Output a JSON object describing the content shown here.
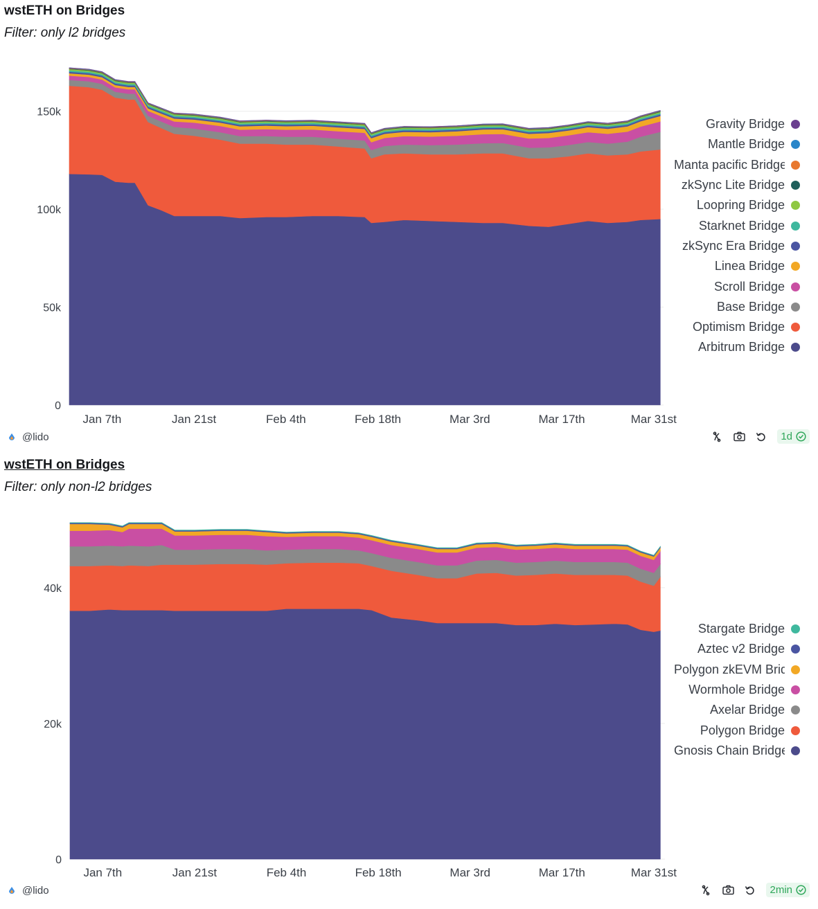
{
  "panels": [
    {
      "title": "wstETH on Bridges",
      "subtitle": "Filter: only l2 bridges",
      "author": "@lido",
      "freshness": "1d",
      "legend": [
        "Gravity Bridge",
        "Mantle Bridge",
        "Manta pacific Bridge",
        "zkSync Lite Bridge",
        "Loopring Bridge",
        "Starknet Bridge",
        "zkSync Era Bridge",
        "Linea Bridge",
        "Scroll Bridge",
        "Base Bridge",
        "Optimism Bridge",
        "Arbitrum Bridge"
      ]
    },
    {
      "title": "wstETH on Bridges",
      "subtitle": "Filter: only non-l2 bridges",
      "author": "@lido",
      "freshness": "2min",
      "legend": [
        "Stargate Bridge",
        "Aztec v2 Bridge",
        "Polygon zkEVM Bridge",
        "Wormhole Bridge",
        "Axelar Bridge",
        "Polygon Bridge",
        "Gnosis Chain Bridge"
      ]
    }
  ],
  "chart_data": [
    {
      "type": "area",
      "stacked": true,
      "title": "wstETH on Bridges",
      "subtitle": "Filter: only l2 bridges",
      "xlabel": "",
      "ylabel": "",
      "x_ticks": [
        "Jan 7th",
        "Jan 21st",
        "Feb 4th",
        "Feb 18th",
        "Mar 3rd",
        "Mar 17th",
        "Mar 31st"
      ],
      "y_ticks": [
        "0",
        "50k",
        "100k",
        "150k"
      ],
      "ylim": [
        0,
        175000
      ],
      "x": [
        "Jan 2",
        "Jan 5",
        "Jan 7",
        "Jan 9",
        "Jan 11",
        "Jan 12",
        "Jan 14",
        "Jan 16",
        "Jan 18",
        "Jan 21",
        "Jan 25",
        "Jan 28",
        "Feb 1",
        "Feb 4",
        "Feb 8",
        "Feb 12",
        "Feb 16",
        "Feb 17",
        "Feb 19",
        "Feb 22",
        "Feb 26",
        "Mar 1",
        "Mar 5",
        "Mar 8",
        "Mar 12",
        "Mar 15",
        "Mar 18",
        "Mar 21",
        "Mar 24",
        "Mar 27",
        "Mar 29",
        "Apr 1"
      ],
      "series": [
        {
          "name": "Arbitrum Bridge",
          "color": "#4c4b8b",
          "values": [
            118000,
            117800,
            117500,
            114000,
            113500,
            113500,
            102000,
            99500,
            96500,
            96500,
            96500,
            95500,
            96000,
            96000,
            96500,
            96500,
            96000,
            93000,
            93500,
            94500,
            94000,
            93500,
            93000,
            93000,
            91500,
            91000,
            92500,
            94000,
            93000,
            93500,
            94500,
            95000
          ]
        },
        {
          "name": "Optimism Bridge",
          "color": "#ef5a3c",
          "values": [
            45000,
            44500,
            43500,
            43000,
            42500,
            42500,
            42500,
            42000,
            42000,
            41000,
            39000,
            38000,
            37500,
            37000,
            36500,
            35500,
            35000,
            33000,
            34500,
            34000,
            34000,
            34500,
            35500,
            35500,
            34500,
            35000,
            34500,
            34500,
            34500,
            34500,
            35000,
            35500
          ]
        },
        {
          "name": "Base Bridge",
          "color": "#8a8a8a",
          "values": [
            3000,
            3000,
            3000,
            3000,
            3000,
            3000,
            3200,
            3300,
            3500,
            3700,
            3800,
            3800,
            3900,
            4000,
            4000,
            4000,
            4100,
            4200,
            4300,
            4500,
            4700,
            5000,
            5200,
            5300,
            5400,
            5600,
            5800,
            5800,
            6000,
            6500,
            7500,
            9000
          ]
        },
        {
          "name": "Scroll Bridge",
          "color": "#c94fa3",
          "values": [
            2200,
            2200,
            2200,
            2200,
            2200,
            2200,
            2500,
            2700,
            2800,
            3000,
            3200,
            3300,
            3500,
            3600,
            3700,
            3800,
            3900,
            4000,
            4100,
            4300,
            4400,
            4500,
            4600,
            4600,
            4700,
            4800,
            4900,
            5000,
            5000,
            5100,
            5200,
            5300
          ]
        },
        {
          "name": "Linea Bridge",
          "color": "#f2a825",
          "values": [
            1200,
            1200,
            1200,
            1200,
            1200,
            1200,
            1300,
            1400,
            1500,
            1600,
            1700,
            1700,
            1800,
            1800,
            1900,
            2000,
            2000,
            2100,
            2100,
            2200,
            2200,
            2300,
            2400,
            2400,
            2400,
            2500,
            2500,
            2600,
            2600,
            2700,
            2700,
            2800
          ]
        },
        {
          "name": "zkSync Era Bridge",
          "color": "#4a55a2",
          "values": [
            800,
            800,
            800,
            800,
            800,
            800,
            800,
            800,
            800,
            800,
            800,
            800,
            800,
            800,
            800,
            800,
            800,
            800,
            800,
            800,
            800,
            800,
            800,
            800,
            800,
            800,
            800,
            800,
            800,
            800,
            800,
            800
          ]
        },
        {
          "name": "Starknet Bridge",
          "color": "#3fb89e",
          "values": [
            700,
            700,
            700,
            700,
            700,
            700,
            700,
            700,
            700,
            700,
            700,
            700,
            700,
            700,
            700,
            700,
            700,
            700,
            700,
            700,
            700,
            700,
            700,
            700,
            700,
            700,
            700,
            700,
            700,
            700,
            700,
            700
          ]
        },
        {
          "name": "Loopring Bridge",
          "color": "#8fc843",
          "values": [
            600,
            600,
            600,
            600,
            600,
            600,
            600,
            600,
            600,
            600,
            600,
            600,
            600,
            600,
            600,
            600,
            600,
            600,
            600,
            600,
            600,
            600,
            600,
            600,
            600,
            600,
            600,
            600,
            600,
            600,
            600,
            600
          ]
        },
        {
          "name": "zkSync Lite Bridge",
          "color": "#1f5f5b",
          "values": [
            300,
            300,
            300,
            300,
            300,
            300,
            300,
            300,
            300,
            300,
            300,
            300,
            300,
            300,
            300,
            300,
            300,
            300,
            300,
            300,
            300,
            300,
            300,
            300,
            300,
            300,
            300,
            300,
            300,
            300,
            300,
            300
          ]
        },
        {
          "name": "Manta pacific Bridge",
          "color": "#e8782e",
          "values": [
            200,
            200,
            200,
            200,
            200,
            200,
            200,
            200,
            200,
            200,
            200,
            200,
            200,
            200,
            200,
            200,
            200,
            200,
            200,
            200,
            200,
            200,
            200,
            200,
            200,
            200,
            200,
            200,
            200,
            200,
            200,
            200
          ]
        },
        {
          "name": "Mantle Bridge",
          "color": "#2a86c9",
          "values": [
            150,
            150,
            150,
            150,
            150,
            150,
            150,
            150,
            150,
            150,
            150,
            150,
            150,
            150,
            150,
            150,
            150,
            150,
            150,
            150,
            150,
            150,
            150,
            150,
            150,
            150,
            150,
            150,
            150,
            150,
            150,
            150
          ]
        },
        {
          "name": "Gravity Bridge",
          "color": "#6b3f8f",
          "values": [
            100,
            100,
            100,
            100,
            100,
            100,
            100,
            100,
            100,
            100,
            100,
            100,
            100,
            100,
            100,
            100,
            100,
            100,
            100,
            100,
            100,
            100,
            100,
            100,
            100,
            100,
            100,
            100,
            100,
            100,
            100,
            100
          ]
        }
      ]
    },
    {
      "type": "area",
      "stacked": true,
      "title": "wstETH on Bridges",
      "subtitle": "Filter: only non-l2 bridges",
      "xlabel": "",
      "ylabel": "",
      "x_ticks": [
        "Jan 7th",
        "Jan 21st",
        "Feb 4th",
        "Feb 18th",
        "Mar 3rd",
        "Mar 17th",
        "Mar 31st"
      ],
      "y_ticks": [
        "0",
        "20k",
        "40k"
      ],
      "ylim": [
        0,
        50500
      ],
      "x": [
        "Jan 2",
        "Jan 5",
        "Jan 8",
        "Jan 10",
        "Jan 11",
        "Jan 14",
        "Jan 16",
        "Jan 18",
        "Jan 21",
        "Jan 25",
        "Jan 29",
        "Feb 1",
        "Feb 4",
        "Feb 8",
        "Feb 12",
        "Feb 15",
        "Feb 17",
        "Feb 20",
        "Feb 24",
        "Feb 27",
        "Mar 1",
        "Mar 4",
        "Mar 7",
        "Mar 10",
        "Mar 13",
        "Mar 16",
        "Mar 19",
        "Mar 22",
        "Mar 25",
        "Mar 27",
        "Mar 29",
        "Mar 31",
        "Apr 1"
      ],
      "series": [
        {
          "name": "Gnosis Chain Bridge",
          "color": "#4c4b8b",
          "values": [
            36600,
            36600,
            36800,
            36700,
            36700,
            36700,
            36700,
            36600,
            36600,
            36600,
            36600,
            36600,
            36900,
            36900,
            36900,
            36900,
            36700,
            35600,
            35200,
            34800,
            34800,
            34800,
            34800,
            34500,
            34500,
            34700,
            34500,
            34600,
            34700,
            34600,
            33800,
            33500,
            33700
          ]
        },
        {
          "name": "Polygon Bridge",
          "color": "#ef5a3c",
          "values": [
            6600,
            6600,
            6500,
            6500,
            6600,
            6500,
            6700,
            6800,
            6800,
            6900,
            6900,
            6800,
            6700,
            6800,
            6800,
            6700,
            6500,
            6900,
            6700,
            6600,
            6600,
            7300,
            7400,
            7300,
            7400,
            7400,
            7400,
            7300,
            7200,
            7200,
            7100,
            6800,
            7900
          ]
        },
        {
          "name": "Axelar Bridge",
          "color": "#8a8a8a",
          "values": [
            2900,
            2900,
            2900,
            2900,
            2900,
            2900,
            2900,
            2200,
            2200,
            2200,
            2200,
            2100,
            2000,
            2000,
            2000,
            1900,
            1900,
            1900,
            1900,
            1900,
            1900,
            1900,
            1900,
            1900,
            1900,
            1900,
            1900,
            1900,
            1900,
            1900,
            1900,
            1900,
            1900
          ]
        },
        {
          "name": "Wormhole Bridge",
          "color": "#c94fa3",
          "values": [
            2300,
            2300,
            2300,
            2100,
            2500,
            2600,
            2400,
            2100,
            2100,
            2100,
            2100,
            2100,
            1900,
            1900,
            1900,
            1900,
            1900,
            1900,
            1900,
            1900,
            1900,
            1900,
            1900,
            1900,
            1900,
            1900,
            1900,
            1900,
            1900,
            1900,
            1900,
            1900,
            1900
          ]
        },
        {
          "name": "Polygon zkEVM Bridge",
          "color": "#f2a825",
          "values": [
            1000,
            1000,
            800,
            700,
            700,
            700,
            700,
            600,
            600,
            600,
            600,
            600,
            500,
            500,
            500,
            500,
            500,
            500,
            500,
            500,
            500,
            500,
            500,
            500,
            500,
            500,
            500,
            500,
            500,
            500,
            500,
            500,
            500
          ]
        },
        {
          "name": "Aztec v2 Bridge",
          "color": "#4a55a2",
          "values": [
            150,
            150,
            150,
            150,
            150,
            150,
            150,
            150,
            150,
            150,
            150,
            150,
            150,
            150,
            150,
            150,
            150,
            150,
            150,
            150,
            150,
            150,
            150,
            150,
            150,
            150,
            150,
            150,
            150,
            150,
            150,
            150,
            150
          ]
        },
        {
          "name": "Stargate Bridge",
          "color": "#3fb89e",
          "values": [
            50,
            50,
            50,
            50,
            50,
            50,
            50,
            50,
            50,
            50,
            50,
            50,
            50,
            50,
            50,
            50,
            50,
            50,
            50,
            50,
            50,
            50,
            50,
            50,
            50,
            50,
            50,
            50,
            50,
            50,
            50,
            50,
            50
          ]
        }
      ]
    }
  ]
}
